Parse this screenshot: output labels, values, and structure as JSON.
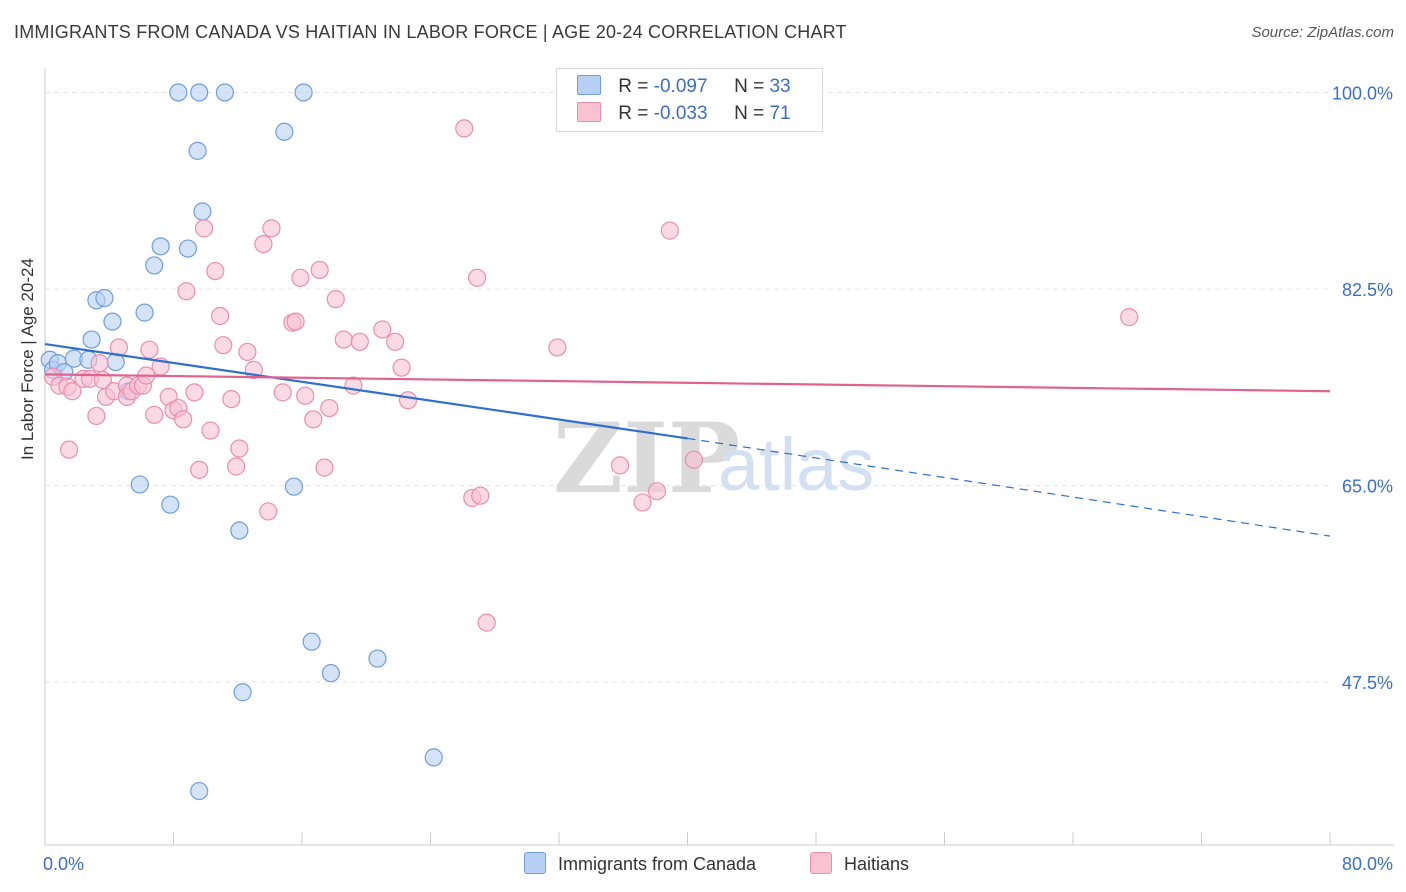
{
  "header": {
    "title": "IMMIGRANTS FROM CANADA VS HAITIAN IN LABOR FORCE | AGE 20-24 CORRELATION CHART",
    "source": "Source: ZipAtlas.com"
  },
  "legend_top": {
    "rows": [
      {
        "r_label": "R = ",
        "r_value": "-0.097",
        "n_label": "N = ",
        "n_value": "33"
      },
      {
        "r_label": "R = ",
        "r_value": "-0.033",
        "n_label": "N = ",
        "n_value": "71"
      }
    ]
  },
  "colors": {
    "canada_fill": "#b8d0f3",
    "canada_stroke": "#6f9fdd",
    "canada_line": "#2f6fce",
    "haitian_fill": "#f8c2d3",
    "haitian_stroke": "#e98fae",
    "haitian_line": "#e0628f",
    "tick_label": "#3b6fc4",
    "grid": "#e4e4e4"
  },
  "watermark": {
    "zip": "ZIP",
    "atlas": "atlas"
  },
  "chart_data": {
    "type": "scatter",
    "title": "IMMIGRANTS FROM CANADA VS HAITIAN IN LABOR FORCE | AGE 20-24 CORRELATION CHART",
    "xlabel": "",
    "ylabel": "In Labor Force | Age 20-24",
    "xlim": [
      0,
      80
    ],
    "ylim": [
      33,
      102
    ],
    "x_tick_labels": [
      {
        "value": 0,
        "label": "0.0%"
      },
      {
        "value": 80,
        "label": "80.0%"
      }
    ],
    "y_tick_labels": [
      {
        "value": 100,
        "label": "100.0%"
      },
      {
        "value": 82.5,
        "label": "82.5%"
      },
      {
        "value": 65,
        "label": "65.0%"
      },
      {
        "value": 47.5,
        "label": "47.5%"
      }
    ],
    "grid": true,
    "legend_position": "bottom",
    "series": [
      {
        "name": "Immigrants from Canada",
        "r": -0.097,
        "n": 33,
        "trend": {
          "x0": 0,
          "y0": 77.6,
          "x1": 40,
          "y1": 69.2,
          "dash_x1": 80,
          "dash_y1": 60.5
        },
        "points": [
          [
            0.3,
            76.2
          ],
          [
            0.5,
            75.3
          ],
          [
            0.8,
            75.9
          ],
          [
            1.2,
            75.1
          ],
          [
            1.8,
            76.3
          ],
          [
            2.7,
            76.2
          ],
          [
            2.9,
            78.0
          ],
          [
            3.2,
            81.5
          ],
          [
            3.7,
            81.7
          ],
          [
            4.2,
            79.6
          ],
          [
            4.4,
            76.0
          ],
          [
            5.2,
            73.4
          ],
          [
            6.2,
            80.4
          ],
          [
            6.8,
            84.6
          ],
          [
            7.2,
            86.3
          ],
          [
            8.9,
            86.1
          ],
          [
            9.8,
            89.4
          ],
          [
            9.5,
            94.8
          ],
          [
            8.3,
            100.0
          ],
          [
            9.6,
            100.0
          ],
          [
            11.2,
            100.0
          ],
          [
            16.1,
            100.0
          ],
          [
            14.9,
            96.5
          ],
          [
            5.9,
            65.1
          ],
          [
            7.8,
            63.3
          ],
          [
            12.1,
            61.0
          ],
          [
            15.5,
            64.9
          ],
          [
            16.6,
            51.1
          ],
          [
            17.8,
            48.3
          ],
          [
            20.7,
            49.6
          ],
          [
            12.3,
            46.6
          ],
          [
            24.2,
            40.8
          ],
          [
            9.6,
            37.8
          ]
        ]
      },
      {
        "name": "Haitians",
        "r": -0.033,
        "n": 71,
        "trend": {
          "x0": 0,
          "y0": 74.9,
          "x1": 80,
          "y1": 73.4
        },
        "points": [
          [
            0.5,
            74.7
          ],
          [
            0.9,
            73.9
          ],
          [
            1.4,
            73.8
          ],
          [
            1.5,
            68.2
          ],
          [
            1.7,
            73.4
          ],
          [
            2.4,
            74.5
          ],
          [
            2.8,
            74.5
          ],
          [
            3.2,
            71.2
          ],
          [
            3.4,
            75.9
          ],
          [
            3.6,
            74.4
          ],
          [
            3.8,
            72.9
          ],
          [
            4.3,
            73.4
          ],
          [
            4.6,
            77.3
          ],
          [
            5.1,
            73.9
          ],
          [
            5.1,
            72.9
          ],
          [
            5.4,
            73.4
          ],
          [
            5.8,
            73.9
          ],
          [
            6.1,
            73.9
          ],
          [
            6.3,
            74.8
          ],
          [
            6.5,
            77.1
          ],
          [
            6.8,
            71.3
          ],
          [
            7.2,
            75.6
          ],
          [
            7.7,
            72.9
          ],
          [
            8.0,
            71.7
          ],
          [
            8.3,
            71.9
          ],
          [
            8.6,
            70.9
          ],
          [
            8.8,
            82.3
          ],
          [
            9.3,
            73.3
          ],
          [
            9.6,
            66.4
          ],
          [
            9.9,
            87.9
          ],
          [
            10.3,
            69.9
          ],
          [
            10.6,
            84.1
          ],
          [
            10.9,
            80.1
          ],
          [
            11.1,
            77.5
          ],
          [
            11.6,
            72.7
          ],
          [
            11.9,
            66.7
          ],
          [
            12.1,
            68.3
          ],
          [
            12.6,
            76.9
          ],
          [
            13.0,
            75.3
          ],
          [
            13.6,
            86.5
          ],
          [
            13.9,
            62.7
          ],
          [
            14.1,
            87.9
          ],
          [
            14.8,
            73.3
          ],
          [
            15.4,
            79.5
          ],
          [
            15.6,
            79.6
          ],
          [
            15.9,
            83.5
          ],
          [
            16.2,
            73.0
          ],
          [
            16.7,
            70.9
          ],
          [
            17.1,
            84.2
          ],
          [
            17.4,
            66.6
          ],
          [
            17.7,
            71.9
          ],
          [
            18.1,
            81.6
          ],
          [
            18.6,
            78.0
          ],
          [
            19.2,
            73.9
          ],
          [
            19.6,
            77.8
          ],
          [
            21.0,
            78.9
          ],
          [
            21.8,
            77.8
          ],
          [
            22.2,
            75.5
          ],
          [
            22.6,
            72.6
          ],
          [
            26.1,
            96.8
          ],
          [
            26.6,
            63.9
          ],
          [
            26.9,
            83.5
          ],
          [
            27.1,
            64.1
          ],
          [
            27.5,
            52.8
          ],
          [
            31.9,
            77.3
          ],
          [
            35.8,
            66.8
          ],
          [
            37.2,
            63.5
          ],
          [
            38.1,
            64.5
          ],
          [
            38.9,
            87.7
          ],
          [
            40.4,
            67.3
          ],
          [
            67.5,
            80.0
          ]
        ]
      }
    ]
  }
}
